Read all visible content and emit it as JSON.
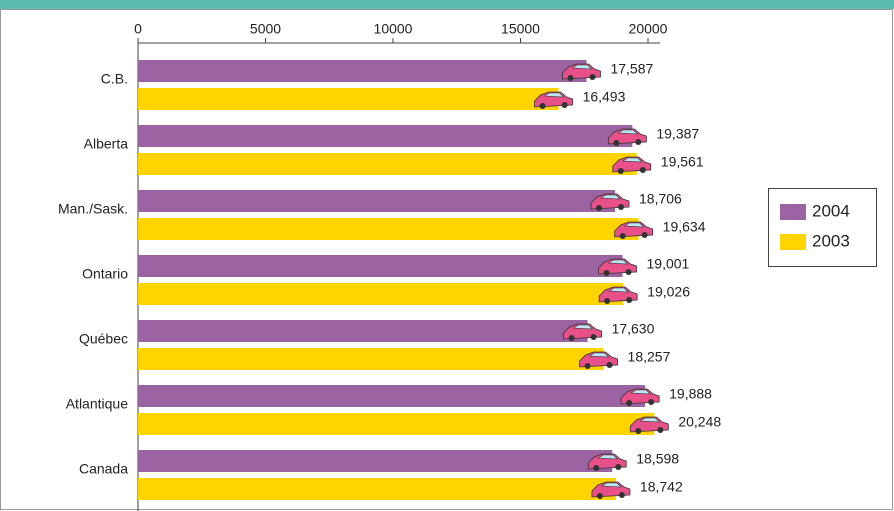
{
  "chart_data": {
    "type": "bar",
    "orientation": "horizontal",
    "categories": [
      "C.B.",
      "Alberta",
      "Man./Sask.",
      "Ontario",
      "Québec",
      "Atlantique",
      "Canada"
    ],
    "series": [
      {
        "name": "2004",
        "color": "#9b63a2",
        "values": [
          17587,
          19387,
          18706,
          19001,
          17630,
          19888,
          18598
        ],
        "value_labels": [
          "17,587",
          "19,387",
          "18,706",
          "19,001",
          "17,630",
          "19,888",
          "18,598"
        ]
      },
      {
        "name": "2003",
        "color": "#ffd400",
        "values": [
          16493,
          19561,
          19634,
          19026,
          18257,
          20248,
          18742
        ],
        "value_labels": [
          "16,493",
          "19,561",
          "19,634",
          "19,026",
          "18,257",
          "20,248",
          "18,742"
        ]
      }
    ],
    "xlim": [
      0,
      20000
    ],
    "xticks": [
      0,
      5000,
      10000,
      15000,
      20000
    ],
    "legend": "right"
  }
}
